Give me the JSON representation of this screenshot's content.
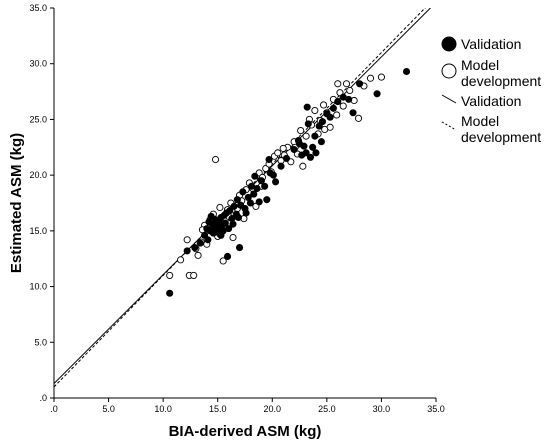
{
  "chart_data": {
    "type": "scatter",
    "title": "",
    "xlabel": "BIA-derived ASM (kg)",
    "ylabel": "Estimated ASM (kg)",
    "xlim": [
      0,
      35
    ],
    "ylim": [
      0,
      35
    ],
    "xticks": [
      ".0",
      "5.0",
      "10.0",
      "15.0",
      "20.0",
      "25.0",
      "30.0",
      "35.0"
    ],
    "yticks": [
      ".0",
      "5.0",
      "10.0",
      "15.0",
      "20.0",
      "25.0",
      "30.0",
      "35.0"
    ],
    "grid": false,
    "legend_position": "top-right",
    "series": [
      {
        "name": "Validation",
        "marker": "filled-circle",
        "color": "#000000",
        "points": [
          [
            10.6,
            9.4
          ],
          [
            12.2,
            13.2
          ],
          [
            12.9,
            13.5
          ],
          [
            13.4,
            13.9
          ],
          [
            13.8,
            14.6
          ],
          [
            14.0,
            15.2
          ],
          [
            14.1,
            14.2
          ],
          [
            14.3,
            15.0
          ],
          [
            14.5,
            15.6
          ],
          [
            14.6,
            14.8
          ],
          [
            14.7,
            15.4
          ],
          [
            14.8,
            16.0
          ],
          [
            14.9,
            14.9
          ],
          [
            15.0,
            15.3
          ],
          [
            15.1,
            15.8
          ],
          [
            15.2,
            14.7
          ],
          [
            15.3,
            16.2
          ],
          [
            15.4,
            15.5
          ],
          [
            15.5,
            15.0
          ],
          [
            15.6,
            16.4
          ],
          [
            15.7,
            15.7
          ],
          [
            15.8,
            16.6
          ],
          [
            16.0,
            15.2
          ],
          [
            16.1,
            16.8
          ],
          [
            16.3,
            16.1
          ],
          [
            16.5,
            17.2
          ],
          [
            16.7,
            16.5
          ],
          [
            16.8,
            17.8
          ],
          [
            17.0,
            13.5
          ],
          [
            17.1,
            17.3
          ],
          [
            17.3,
            18.5
          ],
          [
            17.5,
            17.0
          ],
          [
            17.6,
            16.6
          ],
          [
            17.8,
            18.0
          ],
          [
            18.0,
            17.5
          ],
          [
            18.1,
            19.0
          ],
          [
            18.3,
            18.3
          ],
          [
            18.6,
            18.8
          ],
          [
            18.8,
            17.6
          ],
          [
            19.0,
            19.5
          ],
          [
            19.3,
            19.0
          ],
          [
            19.5,
            17.8
          ],
          [
            19.8,
            20.2
          ],
          [
            20.3,
            19.4
          ],
          [
            20.8,
            20.8
          ],
          [
            21.3,
            21.5
          ],
          [
            22.0,
            22.3
          ],
          [
            22.4,
            23.1
          ],
          [
            22.7,
            21.8
          ],
          [
            22.9,
            22.6
          ],
          [
            23.1,
            22.0
          ],
          [
            23.3,
            24.6
          ],
          [
            23.5,
            21.6
          ],
          [
            23.7,
            22.5
          ],
          [
            23.9,
            23.5
          ],
          [
            24.3,
            24.4
          ],
          [
            24.0,
            22.0
          ],
          [
            24.6,
            24.8
          ],
          [
            25.0,
            25.5
          ],
          [
            25.3,
            25.2
          ],
          [
            25.6,
            26.0
          ],
          [
            26.0,
            26.6
          ],
          [
            26.5,
            27.0
          ],
          [
            27.0,
            26.8
          ],
          [
            27.4,
            25.6
          ],
          [
            28.0,
            28.2
          ],
          [
            29.6,
            27.3
          ],
          [
            32.3,
            29.3
          ],
          [
            15.9,
            12.7
          ],
          [
            14.2,
            15.8
          ],
          [
            16.4,
            15.6
          ],
          [
            23.2,
            26.1
          ],
          [
            24.5,
            23.0
          ],
          [
            19.7,
            21.4
          ],
          [
            18.4,
            19.9
          ],
          [
            15.3,
            14.6
          ],
          [
            16.9,
            16.2
          ],
          [
            22.5,
            22.8
          ],
          [
            14.4,
            16.3
          ],
          [
            20.1,
            20.0
          ]
        ]
      },
      {
        "name": "Model development",
        "marker": "open-circle",
        "color": "#000000",
        "points": [
          [
            10.6,
            11.0
          ],
          [
            11.6,
            12.4
          ],
          [
            12.2,
            14.2
          ],
          [
            12.4,
            11.0
          ],
          [
            12.8,
            11.0
          ],
          [
            13.0,
            13.4
          ],
          [
            13.2,
            12.8
          ],
          [
            13.5,
            14.0
          ],
          [
            13.8,
            15.5
          ],
          [
            14.0,
            13.8
          ],
          [
            14.3,
            16.0
          ],
          [
            14.6,
            16.5
          ],
          [
            14.8,
            21.4
          ],
          [
            15.0,
            14.5
          ],
          [
            15.2,
            17.1
          ],
          [
            15.5,
            12.3
          ],
          [
            15.7,
            16.0
          ],
          [
            16.0,
            16.3
          ],
          [
            16.2,
            17.5
          ],
          [
            16.4,
            14.4
          ],
          [
            16.8,
            17.0
          ],
          [
            17.0,
            18.2
          ],
          [
            17.4,
            16.1
          ],
          [
            17.6,
            18.7
          ],
          [
            17.9,
            19.3
          ],
          [
            18.2,
            18.8
          ],
          [
            18.5,
            17.2
          ],
          [
            18.8,
            20.2
          ],
          [
            19.1,
            19.8
          ],
          [
            19.4,
            20.6
          ],
          [
            19.7,
            21.0
          ],
          [
            19.9,
            20.3
          ],
          [
            20.2,
            21.7
          ],
          [
            20.5,
            22.0
          ],
          [
            20.8,
            21.3
          ],
          [
            21.1,
            21.8
          ],
          [
            21.4,
            22.5
          ],
          [
            21.7,
            21.2
          ],
          [
            22.0,
            23.0
          ],
          [
            22.3,
            21.9
          ],
          [
            22.6,
            24.0
          ],
          [
            22.8,
            20.8
          ],
          [
            23.1,
            23.5
          ],
          [
            23.4,
            25.0
          ],
          [
            23.6,
            24.5
          ],
          [
            23.9,
            25.8
          ],
          [
            24.2,
            23.7
          ],
          [
            24.4,
            24.9
          ],
          [
            24.7,
            26.3
          ],
          [
            25.0,
            25.6
          ],
          [
            25.3,
            24.3
          ],
          [
            25.6,
            26.8
          ],
          [
            25.9,
            25.4
          ],
          [
            26.2,
            27.4
          ],
          [
            26.5,
            26.2
          ],
          [
            26.8,
            28.2
          ],
          [
            27.1,
            27.6
          ],
          [
            27.5,
            26.7
          ],
          [
            27.9,
            25.1
          ],
          [
            28.4,
            28.0
          ],
          [
            29.0,
            28.7
          ],
          [
            30.0,
            28.8
          ],
          [
            13.6,
            15.1
          ],
          [
            15.9,
            16.9
          ],
          [
            17.2,
            17.7
          ],
          [
            19.0,
            19.0
          ],
          [
            21.0,
            22.4
          ],
          [
            22.1,
            22.5
          ],
          [
            24.8,
            24.1
          ],
          [
            26.0,
            28.2
          ]
        ]
      }
    ],
    "fit_lines": [
      {
        "name": "Validation",
        "style": "solid",
        "x": [
          0,
          35
        ],
        "y": [
          1.3,
          35.5
        ]
      },
      {
        "name": "Model development",
        "style": "dashed",
        "x": [
          0,
          35
        ],
        "y": [
          1.0,
          36.0
        ]
      }
    ],
    "legend": [
      {
        "label": "Validation",
        "symbol": "filled-circle"
      },
      {
        "label": "Model development",
        "symbol": "open-circle"
      },
      {
        "label": "Validation",
        "symbol": "solid-line"
      },
      {
        "label": "Model development",
        "symbol": "dashed-line"
      }
    ]
  }
}
